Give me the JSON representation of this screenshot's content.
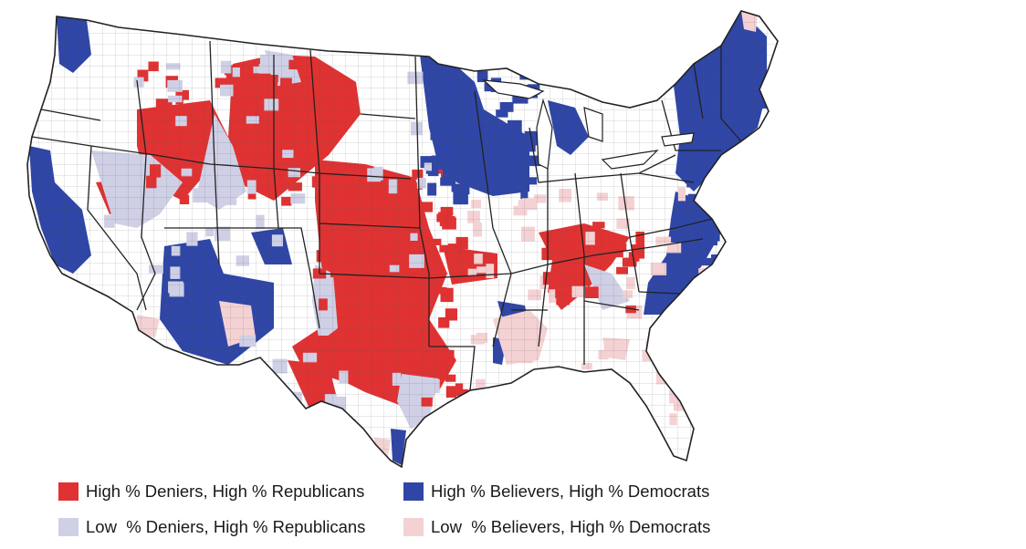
{
  "colors": {
    "high_deniers_high_republicans": "#e03232",
    "high_believers_high_democrats": "#2f46a6",
    "low_deniers_high_republicans": "#cfd0e6",
    "low_believers_high_democrats": "#f4d2d4",
    "neutral": "#ffffff",
    "border": "#2a2a2a"
  },
  "legend": {
    "items": [
      {
        "label": "High % Deniers, High % Republicans",
        "color_key": "high_deniers_high_republicans"
      },
      {
        "label": "High % Believers, High % Democrats",
        "color_key": "high_believers_high_democrats"
      },
      {
        "label": "Low  % Deniers, High % Republicans",
        "color_key": "low_deniers_high_republicans"
      },
      {
        "label": "Low  % Believers, High % Democrats",
        "color_key": "low_believers_high_democrats"
      }
    ]
  }
}
